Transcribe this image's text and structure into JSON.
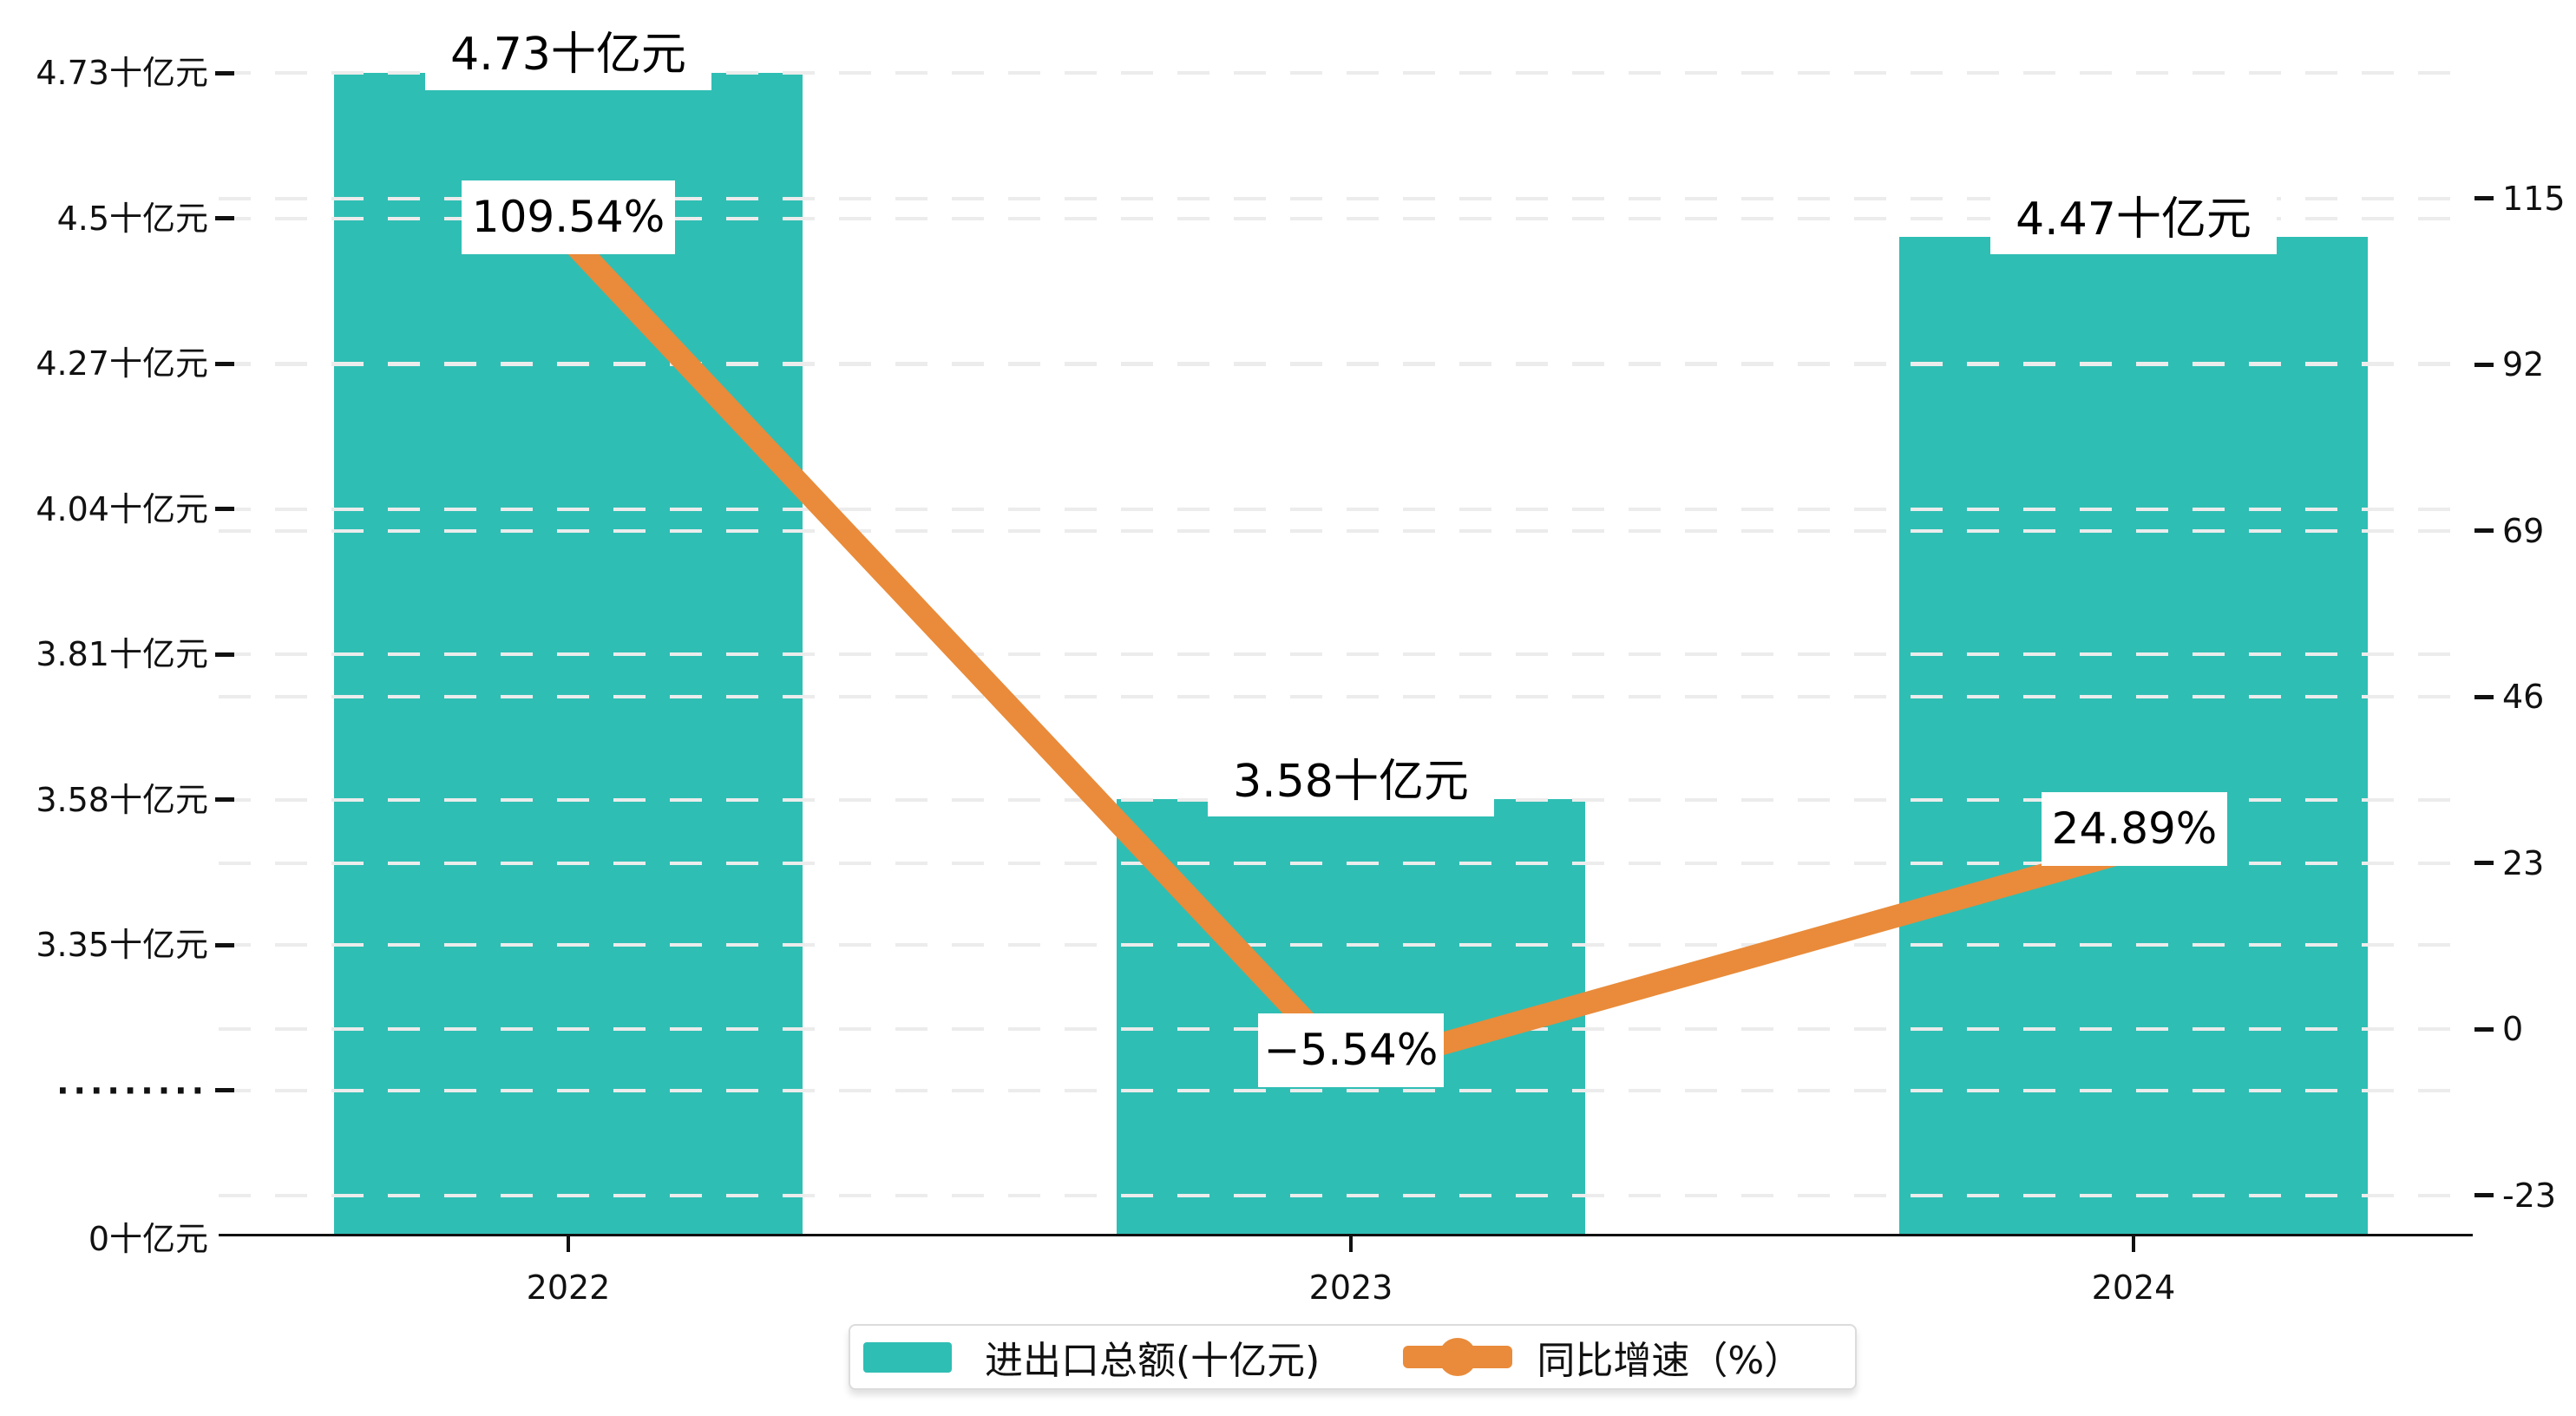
{
  "chart_data": {
    "type": "combo-bar-line",
    "categories": [
      "2022",
      "2023",
      "2024"
    ],
    "series": [
      {
        "name": "进出口总额(十亿元)",
        "type": "bar",
        "color": "#2FBEB4",
        "values": [
          4.73,
          3.58,
          4.47
        ],
        "labels": [
          "4.73十亿元",
          "3.58十亿元",
          "4.47十亿元"
        ]
      },
      {
        "name": "同比增速（%）",
        "type": "line",
        "color": "#E98B3A",
        "values": [
          109.54,
          -5.54,
          24.89
        ],
        "labels": [
          "109.54%",
          "−5.54%",
          "24.89%"
        ]
      }
    ],
    "left_axis": {
      "unit": "十亿元",
      "ticks": [
        "4.73十亿元",
        "4.5十亿元",
        "4.27十亿元",
        "4.04十亿元",
        "3.81十亿元",
        "3.58十亿元",
        "3.35十亿元",
        "·········",
        "0十亿元"
      ],
      "tick_values": [
        4.73,
        4.5,
        4.27,
        4.04,
        3.81,
        3.58,
        3.35,
        null,
        0
      ],
      "has_break": true
    },
    "right_axis": {
      "ticks": [
        "115",
        "92",
        "69",
        "46",
        "23",
        "0",
        "-23"
      ],
      "tick_values": [
        115,
        92,
        69,
        46,
        23,
        0,
        -23
      ]
    },
    "legend": [
      {
        "label": "进出口总额(十亿元)",
        "marker": "bar",
        "color": "#2FBEB4"
      },
      {
        "label": "同比增速（%）",
        "marker": "line",
        "color": "#E98B3A"
      }
    ],
    "grid": true,
    "background": "#ffffff",
    "text_color": "#111111",
    "gridline_color": "#ececec"
  }
}
